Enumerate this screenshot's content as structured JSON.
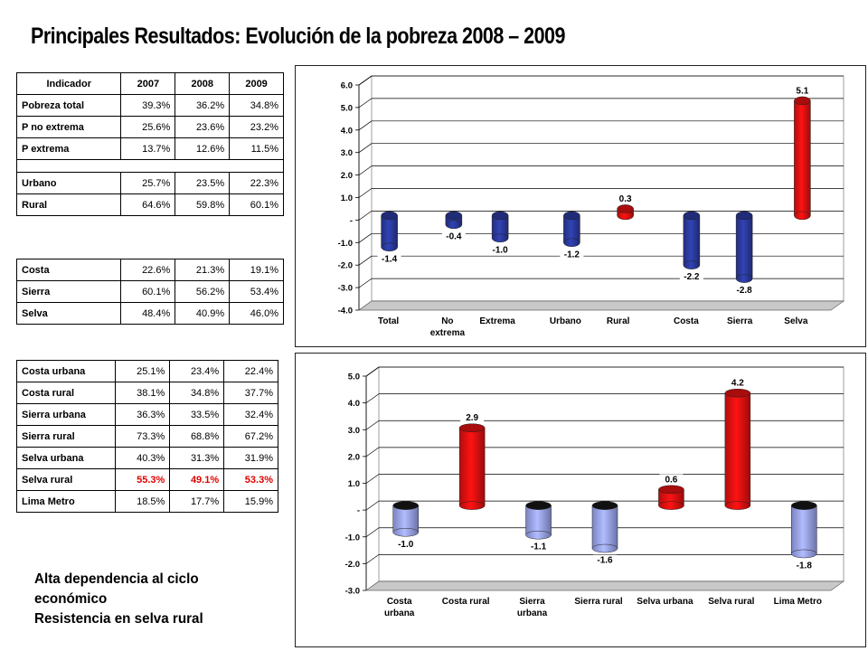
{
  "title": "Principales Resultados: Evolución de la pobreza 2008 – 2009",
  "table1": {
    "headers": [
      "Indicador",
      "2007",
      "2008",
      "2009"
    ],
    "rows": [
      {
        "label": "Pobreza total",
        "v": [
          "39.3%",
          "36.2%",
          "34.8%"
        ]
      },
      {
        "label": "P no extrema",
        "v": [
          "25.6%",
          "23.6%",
          "23.2%"
        ]
      },
      {
        "label": "P extrema",
        "v": [
          "13.7%",
          "12.6%",
          "11.5%"
        ]
      },
      {
        "label": "Urbano",
        "v": [
          "25.7%",
          "23.5%",
          "22.3%"
        ]
      },
      {
        "label": "Rural",
        "v": [
          "64.6%",
          "59.8%",
          "60.1%"
        ]
      }
    ]
  },
  "table2": {
    "rows": [
      {
        "label": "Costa",
        "v": [
          "22.6%",
          "21.3%",
          "19.1%"
        ]
      },
      {
        "label": "Sierra",
        "v": [
          "60.1%",
          "56.2%",
          "53.4%"
        ]
      },
      {
        "label": "Selva",
        "v": [
          "48.4%",
          "40.9%",
          "46.0%"
        ]
      }
    ]
  },
  "table3": {
    "rows": [
      {
        "label": "Costa urbana",
        "v": [
          "25.1%",
          "23.4%",
          "22.4%"
        ]
      },
      {
        "label": "Costa rural",
        "v": [
          "38.1%",
          "34.8%",
          "37.7%"
        ]
      },
      {
        "label": "Sierra urbana",
        "v": [
          "36.3%",
          "33.5%",
          "32.4%"
        ]
      },
      {
        "label": "Sierra rural",
        "v": [
          "73.3%",
          "68.8%",
          "67.2%"
        ]
      },
      {
        "label": "Selva urbana",
        "v": [
          "40.3%",
          "31.3%",
          "31.9%"
        ]
      },
      {
        "label": "Selva rural",
        "v": [
          "55.3%",
          "49.1%",
          "53.3%"
        ]
      },
      {
        "label": "Lima Metro",
        "v": [
          "18.5%",
          "17.7%",
          "15.9%"
        ]
      }
    ]
  },
  "note": [
    "Alta dependencia al ciclo",
    "económico",
    "Resistencia en selva rural"
  ],
  "colors": {
    "positive": "#e01010",
    "neg_dark": "#2b3a9e",
    "neg_light": "#9aa4f0",
    "floor": "#c8c8c8"
  },
  "chart_data": [
    {
      "type": "bar",
      "categories": [
        [
          "Total"
        ],
        [
          "No",
          "extrema"
        ],
        [
          "Extrema"
        ],
        [
          "Urbano"
        ],
        [
          "Rural"
        ],
        [
          "Costa"
        ],
        [
          "Sierra"
        ],
        [
          "Selva"
        ]
      ],
      "values": [
        -1.4,
        -0.4,
        -1.0,
        -1.2,
        0.3,
        -2.2,
        -2.8,
        5.1
      ],
      "labels": [
        "-1.4",
        "-0.4",
        "-1.0",
        "-1.2",
        "0.3",
        "-2.2",
        "-2.8",
        "5.1"
      ],
      "yticks": [
        "6.0",
        "5.0",
        "4.0",
        "3.0",
        "2.0",
        "1.0",
        "-",
        "-1.0",
        "-2.0",
        "-3.0",
        "-4.0"
      ],
      "ylim": [
        -4,
        6
      ],
      "style": "dark"
    },
    {
      "type": "bar",
      "categories": [
        [
          "Costa",
          "urbana"
        ],
        [
          "Costa rural"
        ],
        [
          "Sierra",
          "urbana"
        ],
        [
          "Sierra rural"
        ],
        [
          "Selva urbana"
        ],
        [
          "Selva rural"
        ],
        [
          "Lima Metro"
        ]
      ],
      "values": [
        -1.0,
        2.9,
        -1.1,
        -1.6,
        0.6,
        4.2,
        -1.8
      ],
      "labels": [
        "-1.0",
        "2.9",
        "-1.1",
        "-1.6",
        "0.6",
        "4.2",
        "-1.8"
      ],
      "yticks": [
        "5.0",
        "4.0",
        "3.0",
        "2.0",
        "1.0",
        "-",
        "-1.0",
        "-2.0",
        "-3.0"
      ],
      "ylim": [
        -3,
        5
      ],
      "style": "light"
    }
  ]
}
